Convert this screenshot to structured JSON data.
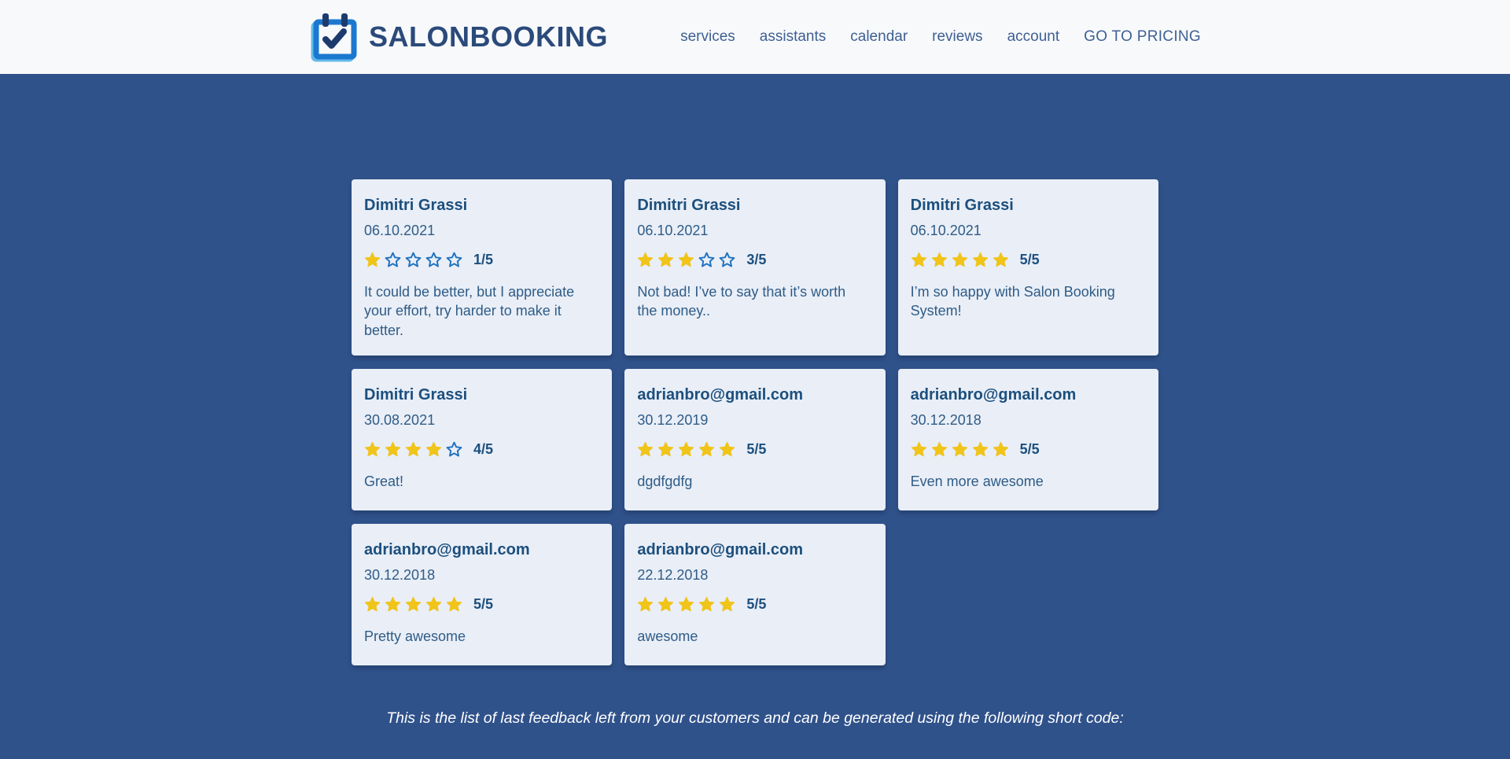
{
  "brand": {
    "name": "SALONBOOKING",
    "logo_icon": "calendar-check-icon"
  },
  "nav": {
    "items": [
      "services",
      "assistants",
      "calendar",
      "reviews",
      "account"
    ],
    "cta": "GO TO PRICING"
  },
  "reviews": [
    {
      "author": "Dimitri Grassi",
      "date": "06.10.2021",
      "rating": 1,
      "rating_label": "1/5",
      "text": "It could be better, but I appreciate your effort, try harder to make it better."
    },
    {
      "author": "Dimitri Grassi",
      "date": "06.10.2021",
      "rating": 3,
      "rating_label": "3/5",
      "text": "Not bad! I’ve to say that it’s worth the money.."
    },
    {
      "author": "Dimitri Grassi",
      "date": "06.10.2021",
      "rating": 5,
      "rating_label": "5/5",
      "text": "I’m so happy with Salon Booking System!"
    },
    {
      "author": "Dimitri Grassi",
      "date": "30.08.2021",
      "rating": 4,
      "rating_label": "4/5",
      "text": "Great!"
    },
    {
      "author": "adrianbro@gmail.com",
      "date": "30.12.2019",
      "rating": 5,
      "rating_label": "5/5",
      "text": "dgdfgdfg"
    },
    {
      "author": "adrianbro@gmail.com",
      "date": "30.12.2018",
      "rating": 5,
      "rating_label": "5/5",
      "text": "Even more awesome"
    },
    {
      "author": "adrianbro@gmail.com",
      "date": "30.12.2018",
      "rating": 5,
      "rating_label": "5/5",
      "text": "Pretty awesome"
    },
    {
      "author": "adrianbro@gmail.com",
      "date": "22.12.2018",
      "rating": 5,
      "rating_label": "5/5",
      "text": "awesome"
    }
  ],
  "footer": {
    "note": "This is the list of last feedback left from your customers and can be generated using the following short code:"
  },
  "colors": {
    "page_bg": "#30528b",
    "header_bg": "#f8f9fb",
    "card_bg": "#e9eef7",
    "brand_navy": "#2b4a7a",
    "nav_link": "#3e6094",
    "author_text": "#1c4f7d",
    "body_text": "#2f5c86",
    "star_filled": "#f0c419",
    "star_outline": "#1d70bd",
    "logo_frame_blue": "#1b78cf",
    "logo_dark_navy": "#1d3a6d",
    "logo_shadow_blue": "#64b9ea"
  }
}
